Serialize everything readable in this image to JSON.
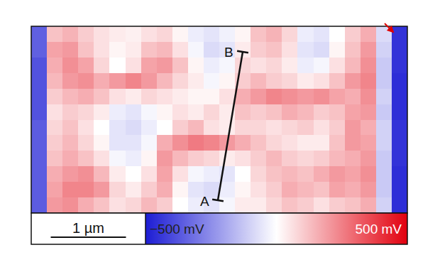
{
  "chart_data": {
    "type": "heatmap",
    "xlim": [
      0,
      5
    ],
    "ylim": [
      0,
      2.48
    ],
    "tick_labels": false,
    "cells": [
      [
        -350,
        120,
        150,
        100,
        60,
        40,
        30,
        60,
        80,
        20,
        -40,
        -60,
        -30,
        20,
        120,
        150,
        80,
        -40,
        -60,
        0,
        100,
        160,
        -80,
        -450
      ],
      [
        -350,
        180,
        200,
        120,
        60,
        20,
        40,
        120,
        140,
        60,
        -20,
        -80,
        -60,
        40,
        100,
        120,
        60,
        -60,
        -80,
        20,
        120,
        200,
        -100,
        -450
      ],
      [
        -380,
        160,
        220,
        180,
        80,
        0,
        60,
        180,
        200,
        120,
        20,
        -40,
        -20,
        80,
        60,
        80,
        40,
        -40,
        -20,
        60,
        140,
        220,
        -120,
        -450
      ],
      [
        -380,
        140,
        200,
        220,
        160,
        200,
        240,
        200,
        140,
        80,
        40,
        -20,
        20,
        100,
        140,
        100,
        80,
        40,
        60,
        120,
        200,
        240,
        -120,
        -460
      ],
      [
        -380,
        100,
        140,
        160,
        120,
        60,
        40,
        80,
        60,
        40,
        20,
        20,
        60,
        160,
        200,
        240,
        220,
        200,
        220,
        180,
        160,
        220,
        -100,
        -460
      ],
      [
        -380,
        60,
        100,
        80,
        40,
        -40,
        -60,
        -20,
        20,
        60,
        40,
        80,
        40,
        120,
        100,
        120,
        160,
        140,
        100,
        120,
        180,
        200,
        -120,
        -460
      ],
      [
        -360,
        80,
        120,
        60,
        0,
        -60,
        -80,
        -40,
        0,
        100,
        140,
        60,
        40,
        80,
        80,
        60,
        80,
        100,
        60,
        100,
        200,
        160,
        -100,
        -450
      ],
      [
        -360,
        100,
        140,
        80,
        20,
        -60,
        -60,
        -20,
        160,
        220,
        260,
        240,
        200,
        160,
        120,
        80,
        60,
        40,
        40,
        120,
        200,
        180,
        -100,
        -450
      ],
      [
        -360,
        120,
        160,
        120,
        60,
        -20,
        -40,
        20,
        200,
        140,
        100,
        80,
        40,
        60,
        100,
        140,
        100,
        80,
        100,
        140,
        160,
        200,
        -120,
        -450
      ],
      [
        -360,
        160,
        200,
        220,
        140,
        40,
        0,
        60,
        180,
        60,
        -20,
        -40,
        -60,
        0,
        80,
        120,
        140,
        120,
        160,
        200,
        180,
        220,
        -120,
        -460
      ],
      [
        -360,
        180,
        240,
        240,
        200,
        80,
        40,
        100,
        160,
        20,
        -60,
        -80,
        -40,
        20,
        60,
        100,
        160,
        140,
        120,
        180,
        160,
        200,
        -120,
        -460
      ],
      [
        -360,
        200,
        220,
        160,
        120,
        60,
        80,
        140,
        100,
        0,
        -40,
        -60,
        -20,
        40,
        40,
        80,
        120,
        100,
        60,
        100,
        120,
        160,
        -100,
        -460
      ]
    ],
    "color_range": [
      -500,
      500
    ],
    "color_ticks": [
      {
        "value": -500,
        "label": "−500 mV"
      },
      {
        "value": 500,
        "label": "500 mV"
      }
    ],
    "scale_bar": {
      "value": 1,
      "label": "1 µm"
    },
    "annotations": [
      {
        "text": "A"
      },
      {
        "text": "B"
      }
    ]
  }
}
